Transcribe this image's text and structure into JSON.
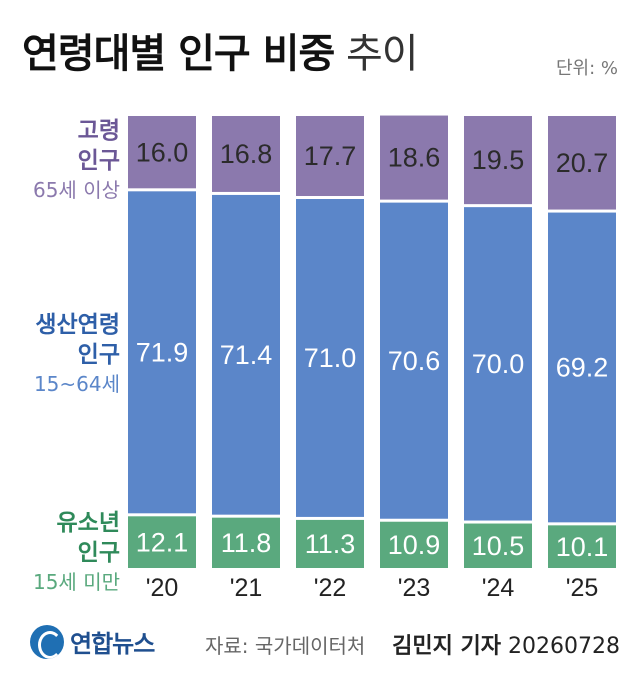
{
  "title": {
    "main": "연령대별 인구 비중",
    "suffix": "추이"
  },
  "unit": "단위: %",
  "groups": {
    "elderly": {
      "name_line1": "고령",
      "name_line2": "인구",
      "range": "65세 이상",
      "color": "#8b79ad"
    },
    "working": {
      "name_line1": "생산연령",
      "name_line2": "인구",
      "range": "15~64세",
      "color": "#5b86c9"
    },
    "youth": {
      "name_line1": "유소년",
      "name_line2": "인구",
      "range": "15세 미만",
      "color": "#5aa97e"
    }
  },
  "chart_data": {
    "type": "bar",
    "stacked": true,
    "categories": [
      "'20",
      "'21",
      "'22",
      "'23",
      "'24",
      "'25"
    ],
    "series": [
      {
        "name": "유소년 인구",
        "values": [
          12.1,
          11.8,
          11.3,
          10.9,
          10.5,
          10.1
        ]
      },
      {
        "name": "생산연령 인구",
        "values": [
          71.9,
          71.4,
          71.0,
          70.6,
          70.0,
          69.2
        ]
      },
      {
        "name": "고령 인구",
        "values": [
          16.0,
          16.8,
          17.7,
          18.6,
          19.5,
          20.7
        ]
      }
    ],
    "ylim": [
      0,
      100
    ]
  },
  "footer": {
    "logo": "연합뉴스",
    "source": "자료: 국가데이터처",
    "reporter": "김민지 기자",
    "date": "20260728"
  }
}
